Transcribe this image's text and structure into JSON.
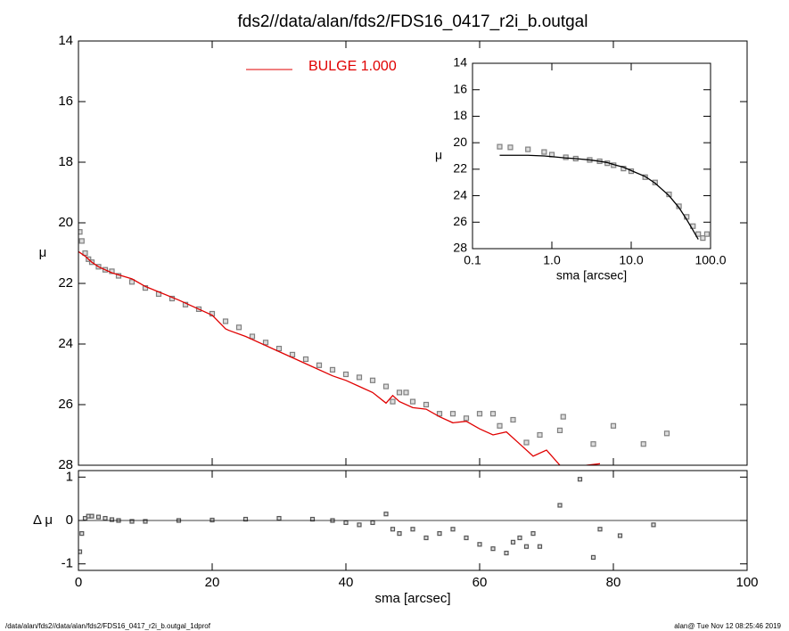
{
  "chart_data": [
    {
      "type": "profile",
      "title": "fds2//data/alan/fds2/FDS16_0417_r2i_b.outgal",
      "ylabel": "μ",
      "xlim": [
        0,
        100
      ],
      "xticks": [
        0,
        20,
        40,
        60,
        80,
        100
      ],
      "ylim": [
        28,
        14
      ],
      "yticks": [
        14,
        16,
        18,
        20,
        22,
        24,
        26,
        28
      ],
      "legend": "top",
      "series": [
        {
          "mode": "markers",
          "color": "#808080",
          "x": [
            0.2,
            0.5,
            1,
            1.5,
            2,
            3,
            4,
            5,
            6,
            8,
            10,
            12,
            14,
            16,
            18,
            20,
            22,
            24,
            26,
            28,
            30,
            32,
            34,
            36,
            38,
            40,
            42,
            44,
            46,
            47,
            48,
            49,
            50,
            52,
            54,
            56,
            58,
            60,
            62,
            63,
            65,
            67,
            69,
            72,
            72.5,
            77,
            80,
            84.5,
            88
          ],
          "values": [
            20.3,
            20.6,
            21.0,
            21.2,
            21.3,
            21.45,
            21.55,
            21.6,
            21.75,
            21.95,
            22.15,
            22.35,
            22.5,
            22.7,
            22.85,
            23.0,
            23.25,
            23.45,
            23.75,
            23.95,
            24.15,
            24.35,
            24.5,
            24.7,
            24.85,
            25.0,
            25.1,
            25.2,
            25.4,
            25.9,
            25.6,
            25.6,
            25.9,
            26.0,
            26.3,
            26.3,
            26.45,
            26.3,
            26.3,
            26.7,
            26.5,
            27.25,
            27.0,
            26.85,
            26.4,
            27.3,
            26.7,
            27.3,
            26.95
          ]
        },
        {
          "mode": "line",
          "name": "BULGE  1.000",
          "color": "#e00000",
          "x": [
            0,
            1,
            2,
            3,
            5,
            8,
            10,
            15,
            20,
            22,
            22.5,
            25,
            30,
            35,
            38,
            40,
            42,
            44,
            46,
            47,
            48,
            50,
            52,
            54,
            56,
            58,
            60,
            62,
            64,
            66,
            68,
            70,
            72,
            74,
            76,
            78
          ],
          "values": [
            20.95,
            21.1,
            21.3,
            21.45,
            21.65,
            21.85,
            22.1,
            22.55,
            23.05,
            23.5,
            23.55,
            23.75,
            24.25,
            24.75,
            25.05,
            25.2,
            25.4,
            25.6,
            25.95,
            25.7,
            25.9,
            26.1,
            26.15,
            26.4,
            26.6,
            26.55,
            26.8,
            27.0,
            26.9,
            27.3,
            27.7,
            27.5,
            28.0,
            28.1,
            28.0,
            27.95
          ]
        }
      ]
    },
    {
      "type": "residual",
      "ylabel": "Δ μ",
      "xlabel": "sma [arcsec]",
      "xlim": [
        0,
        100
      ],
      "xticks": [
        0,
        20,
        40,
        60,
        80,
        100
      ],
      "ylim": [
        -1.15,
        1.15
      ],
      "yticks": [
        -1,
        0,
        1
      ],
      "hline": 0,
      "series": [
        {
          "mode": "markers",
          "color": "#555555",
          "x": [
            0.2,
            0.5,
            1,
            1.5,
            2,
            3,
            4,
            5,
            6,
            8,
            10,
            15,
            20,
            25,
            30,
            35,
            38,
            40,
            42,
            44,
            46,
            47,
            48,
            50,
            52,
            54,
            56,
            58,
            60,
            62,
            64,
            65,
            66,
            67,
            68,
            69,
            72,
            75,
            77,
            78,
            81,
            86
          ],
          "values": [
            -0.72,
            -0.3,
            0.05,
            0.1,
            0.1,
            0.08,
            0.05,
            0.02,
            0.0,
            -0.02,
            -0.02,
            0.0,
            0.01,
            0.03,
            0.05,
            0.03,
            0.0,
            -0.05,
            -0.1,
            -0.05,
            0.15,
            -0.2,
            -0.3,
            -0.2,
            -0.4,
            -0.3,
            -0.2,
            -0.4,
            -0.55,
            -0.65,
            -0.75,
            -0.5,
            -0.4,
            -0.6,
            -0.3,
            -0.6,
            0.35,
            0.95,
            -0.85,
            -0.2,
            -0.35,
            -0.1
          ]
        }
      ]
    },
    {
      "type": "profile",
      "xlabel": "sma [arcsec]",
      "ylabel": "μ",
      "log_x": true,
      "xlim": [
        0.1,
        100
      ],
      "xticks": [
        {
          "value": 0.1,
          "label": "0.1"
        },
        {
          "value": 1,
          "label": "1.0"
        },
        {
          "value": 10,
          "label": "10.0"
        },
        {
          "value": 100,
          "label": "100.0"
        }
      ],
      "ylim": [
        28,
        14
      ],
      "yticks": [
        14,
        16,
        18,
        20,
        22,
        24,
        26,
        28
      ],
      "series": [
        {
          "mode": "markers",
          "color": "#808080",
          "x": [
            0.22,
            0.3,
            0.5,
            0.8,
            1,
            1.5,
            2,
            3,
            4,
            5,
            6,
            8,
            10,
            15,
            20,
            30,
            40,
            50,
            60,
            70,
            80,
            90
          ],
          "values": [
            20.3,
            20.35,
            20.5,
            20.7,
            20.9,
            21.1,
            21.2,
            21.3,
            21.4,
            21.55,
            21.7,
            21.95,
            22.15,
            22.6,
            23.0,
            23.9,
            24.8,
            25.6,
            26.3,
            26.9,
            27.2,
            26.9
          ]
        },
        {
          "mode": "line",
          "color": "#000000",
          "x": [
            0.22,
            0.3,
            0.5,
            0.8,
            1,
            1.5,
            2,
            3,
            4,
            5,
            6,
            8,
            10,
            15,
            20,
            30,
            40,
            50,
            60,
            70
          ],
          "values": [
            20.95,
            20.95,
            20.95,
            21.0,
            21.05,
            21.15,
            21.2,
            21.3,
            21.4,
            21.5,
            21.65,
            21.85,
            22.1,
            22.55,
            23.05,
            24.0,
            24.9,
            25.8,
            26.6,
            27.3
          ]
        }
      ]
    }
  ],
  "footer": {
    "left": "/data/alan/fds2//data/alan/fds2/FDS16_0417_r2i_b.outgal_1dprof",
    "right": "alan@  Tue Nov 12 08:25:46 2019"
  }
}
